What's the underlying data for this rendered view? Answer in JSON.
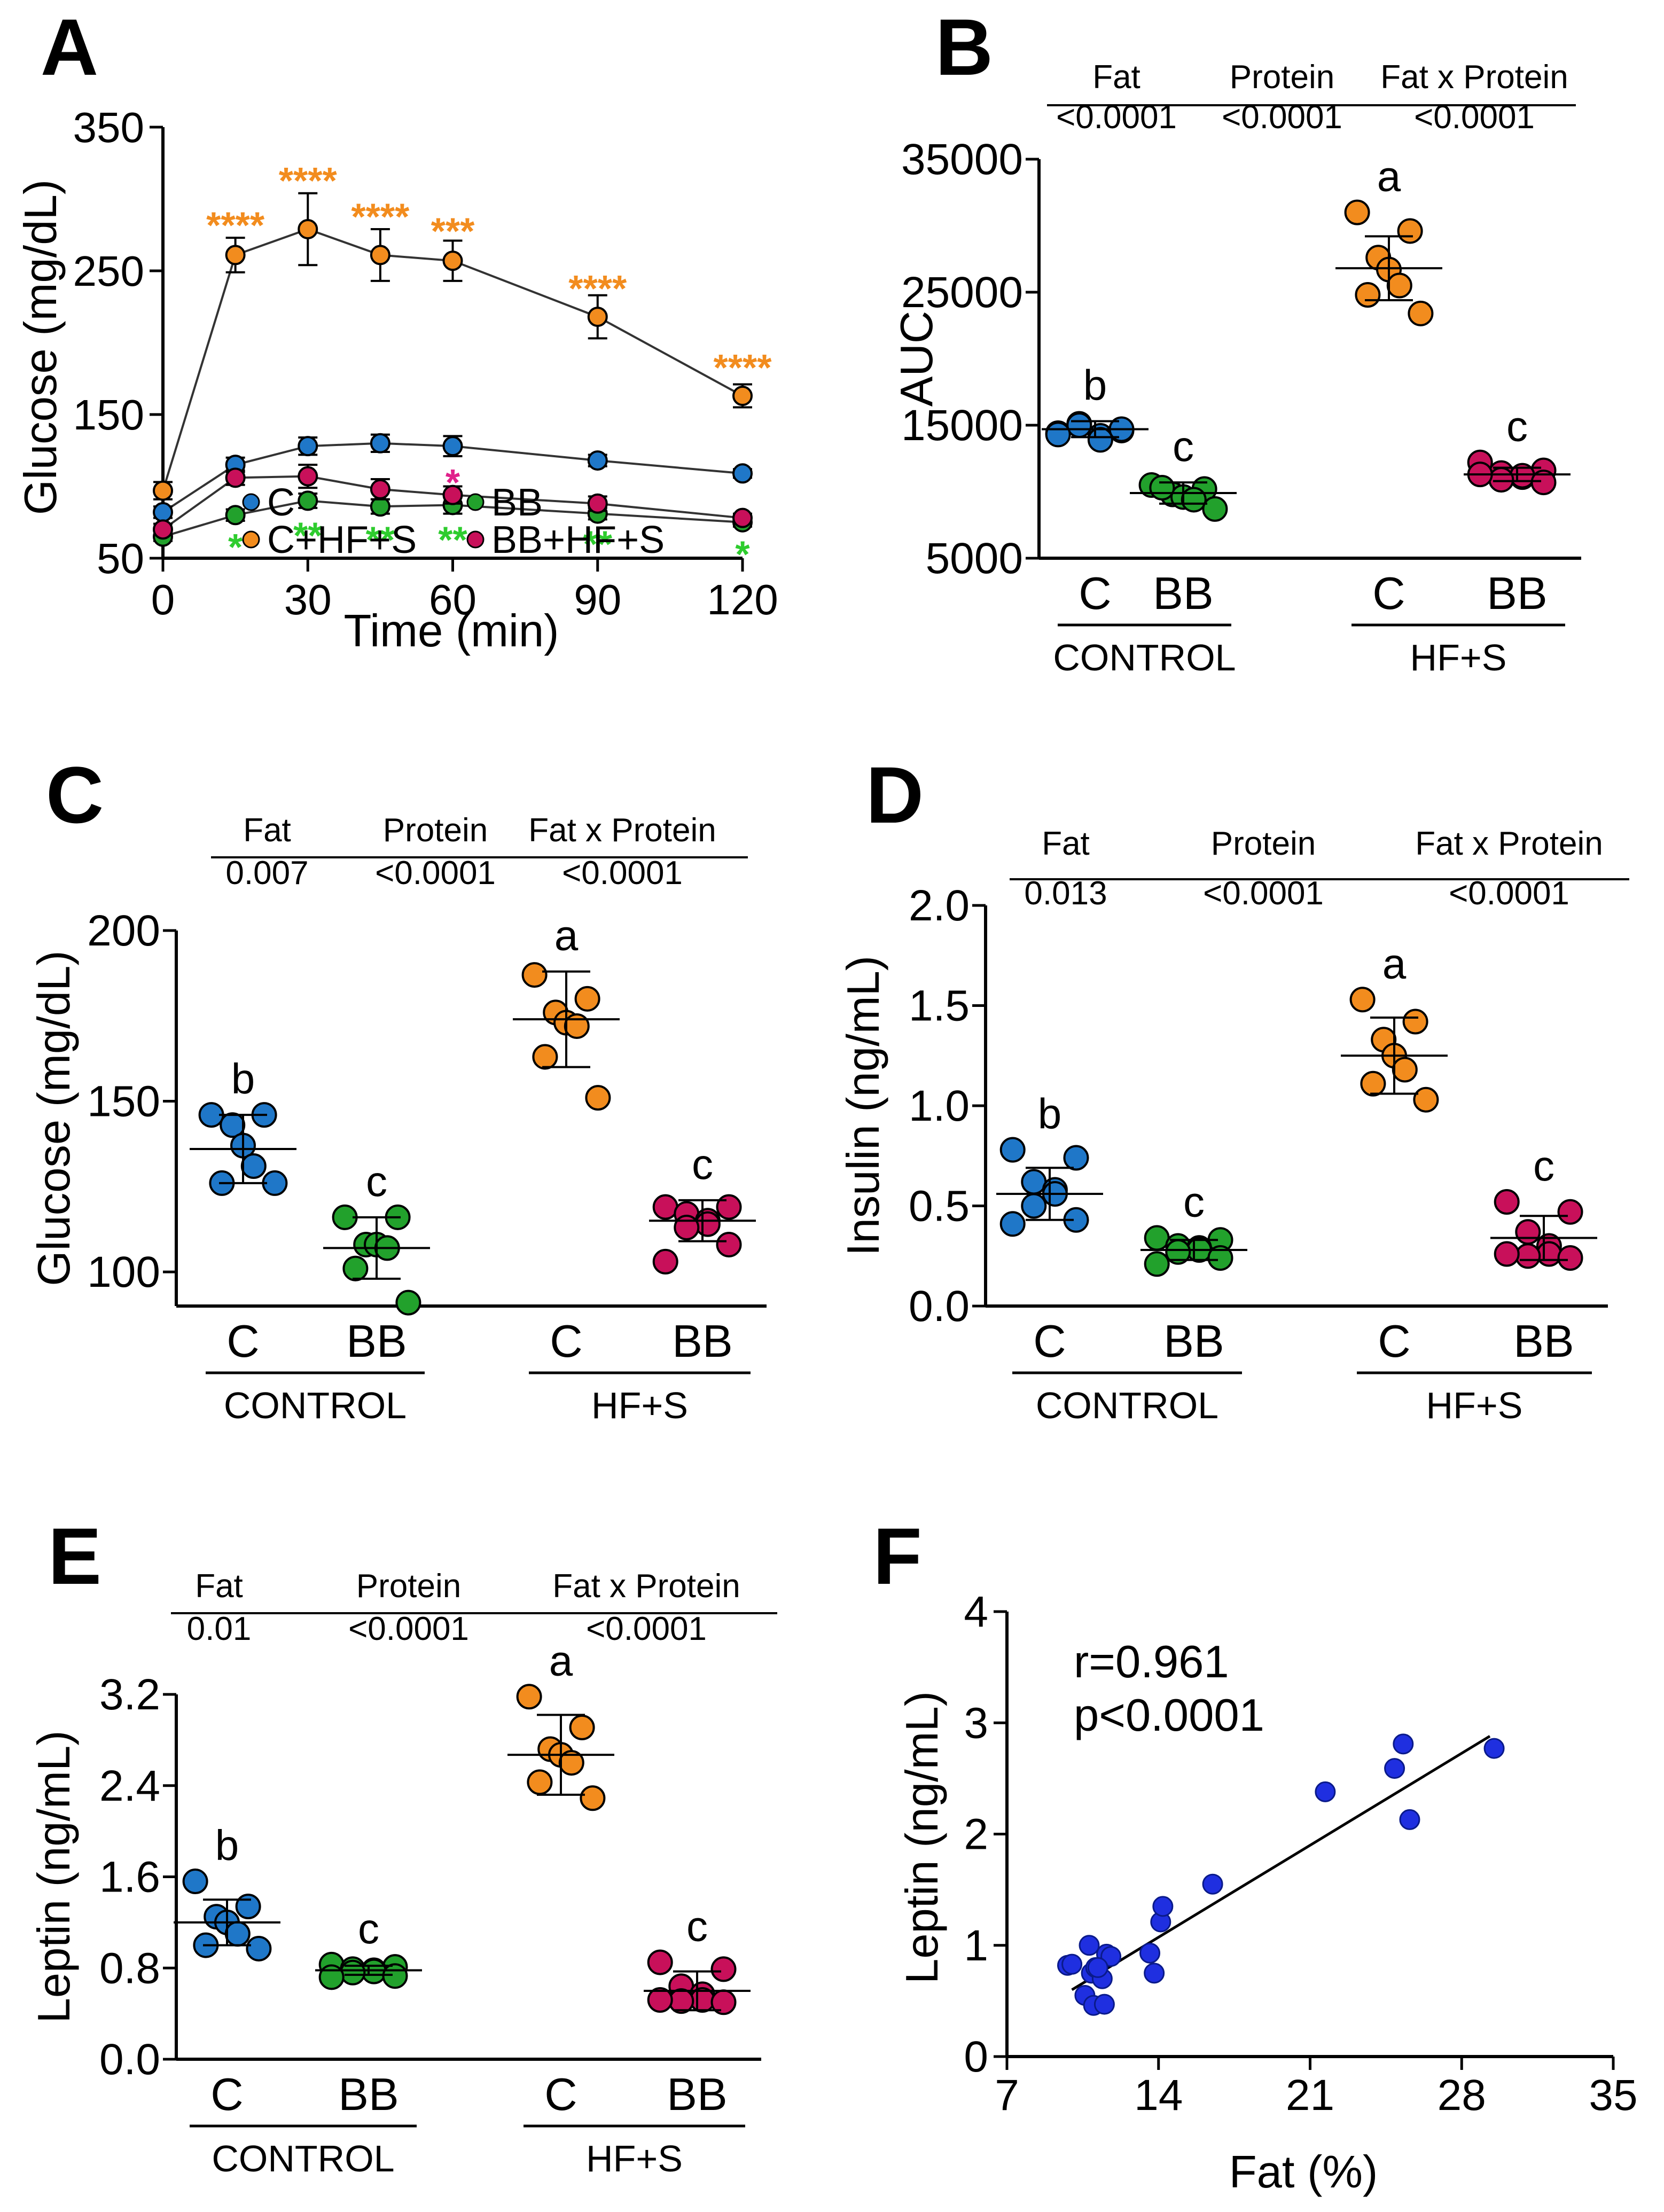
{
  "colors": {
    "C": "#1f77c8",
    "BB": "#22a12c",
    "CHFS": "#f28c1e",
    "BBHFS": "#c8105a",
    "star_C": "#f28c1e",
    "star_BB": "#2ecc2e",
    "star_BBHFS": "#e0208a",
    "scatter": "#1f2fe0",
    "axis": "#000000",
    "background": "#ffffff"
  },
  "chart_data": [
    {
      "id": "A",
      "panel_label": "A",
      "type": "line",
      "xlabel": "Time (min)",
      "ylabel": "Glucose  (mg/dL)",
      "xlim": [
        0,
        120
      ],
      "ylim": [
        50,
        350
      ],
      "x_ticks": [
        0,
        30,
        60,
        90,
        120
      ],
      "y_ticks": [
        50,
        150,
        250,
        350
      ],
      "x": [
        0,
        15,
        30,
        45,
        60,
        90,
        120
      ],
      "series": [
        {
          "key": "C",
          "name": "C",
          "values": [
            82,
            115,
            128,
            130,
            128,
            118,
            109
          ],
          "err": [
            4,
            5,
            6,
            6,
            7,
            4,
            3
          ]
        },
        {
          "key": "BB",
          "name": "BB",
          "values": [
            65,
            80,
            90,
            86,
            87,
            81,
            75
          ],
          "err": [
            3,
            4,
            5,
            5,
            6,
            4,
            3
          ]
        },
        {
          "key": "CHFS",
          "name": "C+HF+S",
          "values": [
            97,
            261,
            279,
            261,
            257,
            218,
            163
          ],
          "err": [
            6,
            12,
            25,
            18,
            14,
            15,
            8
          ]
        },
        {
          "key": "BBHFS",
          "name": "BB+HF+S",
          "values": [
            70,
            106,
            107,
            98,
            94,
            88,
            78
          ],
          "err": [
            4,
            5,
            8,
            7,
            6,
            5,
            3
          ]
        }
      ],
      "annotations": [
        {
          "x": 15,
          "y": 284,
          "text": "****",
          "color": "star_C"
        },
        {
          "x": 30,
          "y": 315,
          "text": "****",
          "color": "star_C"
        },
        {
          "x": 45,
          "y": 290,
          "text": "****",
          "color": "star_C"
        },
        {
          "x": 60,
          "y": 280,
          "text": "***",
          "color": "star_C"
        },
        {
          "x": 90,
          "y": 240,
          "text": "****",
          "color": "star_C"
        },
        {
          "x": 120,
          "y": 185,
          "text": "****",
          "color": "star_C"
        },
        {
          "x": 60,
          "y": 105,
          "text": "*",
          "color": "star_BBHFS"
        },
        {
          "x": 15,
          "y": 60,
          "text": "*",
          "color": "star_BB"
        },
        {
          "x": 30,
          "y": 68,
          "text": "**",
          "color": "star_BB"
        },
        {
          "x": 45,
          "y": 65,
          "text": "**",
          "color": "star_BB"
        },
        {
          "x": 60,
          "y": 65,
          "text": "**",
          "color": "star_BB"
        },
        {
          "x": 90,
          "y": 62,
          "text": "**",
          "color": "star_BB"
        },
        {
          "x": 120,
          "y": 55,
          "text": "*",
          "color": "star_BB"
        }
      ],
      "legend": [
        {
          "key": "C",
          "name": "C"
        },
        {
          "key": "BB",
          "name": "BB"
        },
        {
          "key": "CHFS",
          "name": "C+HF+S"
        },
        {
          "key": "BBHFS",
          "name": "BB+HF+S"
        }
      ]
    },
    {
      "id": "B",
      "panel_label": "B",
      "type": "scatter",
      "ylabel": "AUC",
      "ylim": [
        5000,
        35000
      ],
      "y_ticks": [
        5000,
        15000,
        25000,
        35000
      ],
      "stats": {
        "headers": [
          "Fat",
          "Protein",
          "Fat x Protein"
        ],
        "values": [
          "<0.0001",
          "<0.0001",
          "<0.0001"
        ]
      },
      "groups": [
        {
          "key": "C",
          "label": "C",
          "letter": "b",
          "mean": 14700,
          "sd": 600,
          "points": [
            14400,
            14600,
            15100,
            14200,
            13900,
            15000,
            14700,
            14300
          ]
        },
        {
          "key": "BB",
          "label": "BB",
          "letter": "c",
          "mean": 9900,
          "sd": 800,
          "points": [
            10500,
            10200,
            9800,
            9600,
            9400,
            10300,
            8700
          ]
        },
        {
          "key": "CHFS",
          "label": "C",
          "letter": "a",
          "mean": 26800,
          "sd": 2400,
          "points": [
            31000,
            29600,
            27600,
            26700,
            25500,
            24800,
            23400
          ]
        },
        {
          "key": "BBHFS",
          "label": "BB",
          "letter": "c",
          "mean": 11300,
          "sd": 500,
          "points": [
            12200,
            11600,
            11400,
            11100,
            11200,
            10900,
            10700,
            11300
          ]
        }
      ],
      "group_labels": [
        "CONTROL",
        "HF+S"
      ]
    },
    {
      "id": "C",
      "panel_label": "C",
      "type": "scatter",
      "ylabel": "Glucose  (mg/dL)",
      "ylim": [
        90,
        200
      ],
      "y_ticks": [
        100,
        150,
        200
      ],
      "stats": {
        "headers": [
          "Fat",
          "Protein",
          "Fat x Protein"
        ],
        "values": [
          "0.007",
          "<0.0001",
          "<0.0001"
        ]
      },
      "groups": [
        {
          "key": "C",
          "label": "C",
          "letter": "b",
          "mean": 136,
          "sd": 10,
          "points": [
            146,
            146,
            143,
            137,
            131,
            126,
            126
          ]
        },
        {
          "key": "BB",
          "label": "BB",
          "letter": "c",
          "mean": 107,
          "sd": 9,
          "points": [
            116,
            116,
            108,
            108,
            107,
            101,
            91
          ]
        },
        {
          "key": "CHFS",
          "label": "C",
          "letter": "a",
          "mean": 174,
          "sd": 14,
          "points": [
            187,
            180,
            176,
            173,
            172,
            163,
            151
          ]
        },
        {
          "key": "BBHFS",
          "label": "BB",
          "letter": "c",
          "mean": 115,
          "sd": 6,
          "points": [
            119,
            119,
            117,
            115,
            114,
            113,
            108,
            103
          ]
        }
      ],
      "group_labels": [
        "CONTROL",
        "HF+S"
      ]
    },
    {
      "id": "D",
      "panel_label": "D",
      "type": "scatter",
      "ylabel": "Insulin (ng/mL)",
      "ylim": [
        0,
        2
      ],
      "y_ticks": [
        0.0,
        0.5,
        1.0,
        1.5,
        2.0
      ],
      "y_tick_labels": [
        "0.0",
        "0.5",
        "1.0",
        "1.5",
        "2.0"
      ],
      "stats": {
        "headers": [
          "Fat",
          "Protein",
          "Fat x Protein"
        ],
        "values": [
          "0.013",
          "<0.0001",
          "<0.0001"
        ]
      },
      "groups": [
        {
          "key": "C",
          "label": "C",
          "letter": "b",
          "mean": 0.56,
          "sd": 0.13,
          "points": [
            0.78,
            0.74,
            0.62,
            0.58,
            0.56,
            0.5,
            0.43,
            0.41
          ]
        },
        {
          "key": "BB",
          "label": "BB",
          "letter": "c",
          "mean": 0.28,
          "sd": 0.05,
          "points": [
            0.34,
            0.33,
            0.3,
            0.29,
            0.28,
            0.27,
            0.24,
            0.21
          ]
        },
        {
          "key": "CHFS",
          "label": "C",
          "letter": "a",
          "mean": 1.25,
          "sd": 0.19,
          "points": [
            1.53,
            1.42,
            1.33,
            1.25,
            1.18,
            1.11,
            1.03
          ]
        },
        {
          "key": "BBHFS",
          "label": "BB",
          "letter": "c",
          "mean": 0.34,
          "sd": 0.11,
          "points": [
            0.52,
            0.47,
            0.37,
            0.3,
            0.26,
            0.25,
            0.24,
            0.26
          ]
        }
      ],
      "group_labels": [
        "CONTROL",
        "HF+S"
      ]
    },
    {
      "id": "E",
      "panel_label": "E",
      "type": "scatter",
      "ylabel": "Leptin (ng/mL)",
      "ylim": [
        0,
        3.2
      ],
      "y_ticks": [
        0.0,
        0.8,
        1.6,
        2.4,
        3.2
      ],
      "y_tick_labels": [
        "0.0",
        "0.8",
        "1.6",
        "2.4",
        "3.2"
      ],
      "stats": {
        "headers": [
          "Fat",
          "Protein",
          "Fat x Protein"
        ],
        "values": [
          "0.01",
          "<0.0001",
          "<0.0001"
        ]
      },
      "groups": [
        {
          "key": "C",
          "label": "C",
          "letter": "b",
          "mean": 1.2,
          "sd": 0.2,
          "points": [
            1.56,
            1.34,
            1.25,
            1.2,
            1.1,
            1.0,
            0.97
          ]
        },
        {
          "key": "BB",
          "label": "BB",
          "letter": "c",
          "mean": 0.78,
          "sd": 0.04,
          "points": [
            0.83,
            0.81,
            0.79,
            0.78,
            0.77,
            0.76,
            0.73,
            0.72
          ]
        },
        {
          "key": "CHFS",
          "label": "C",
          "letter": "a",
          "mean": 2.67,
          "sd": 0.35,
          "points": [
            3.18,
            2.91,
            2.72,
            2.67,
            2.6,
            2.43,
            2.29
          ]
        },
        {
          "key": "BBHFS",
          "label": "BB",
          "letter": "c",
          "mean": 0.6,
          "sd": 0.17,
          "points": [
            0.85,
            0.79,
            0.64,
            0.57,
            0.52,
            0.51,
            0.5,
            0.52
          ]
        }
      ],
      "group_labels": [
        "CONTROL",
        "HF+S"
      ]
    },
    {
      "id": "F",
      "panel_label": "F",
      "type": "scatter",
      "xlabel": "Fat (%)",
      "ylabel": "Leptin (ng/mL)",
      "xlim": [
        7,
        35
      ],
      "ylim": [
        0,
        4
      ],
      "x_ticks": [
        7,
        14,
        21,
        28,
        35
      ],
      "y_ticks": [
        0,
        1,
        2,
        3,
        4
      ],
      "annotation_lines": [
        "r=0.961",
        "p<0.0001"
      ],
      "fit": [
        [
          10,
          0.6
        ],
        [
          29.3,
          2.88
        ]
      ],
      "points": [
        [
          9.8,
          0.82
        ],
        [
          10.0,
          0.83
        ],
        [
          10.6,
          0.55
        ],
        [
          10.8,
          1.0
        ],
        [
          10.9,
          0.75
        ],
        [
          11.0,
          0.46
        ],
        [
          11.1,
          0.8
        ],
        [
          11.4,
          0.7
        ],
        [
          11.5,
          0.47
        ],
        [
          11.6,
          0.92
        ],
        [
          11.8,
          0.9
        ],
        [
          11.2,
          0.8
        ],
        [
          13.6,
          0.93
        ],
        [
          13.8,
          0.75
        ],
        [
          14.1,
          1.21
        ],
        [
          14.2,
          1.35
        ],
        [
          16.5,
          1.55
        ],
        [
          21.7,
          2.38
        ],
        [
          24.9,
          2.59
        ],
        [
          25.3,
          2.81
        ],
        [
          25.6,
          2.13
        ],
        [
          29.5,
          2.77
        ]
      ]
    }
  ]
}
